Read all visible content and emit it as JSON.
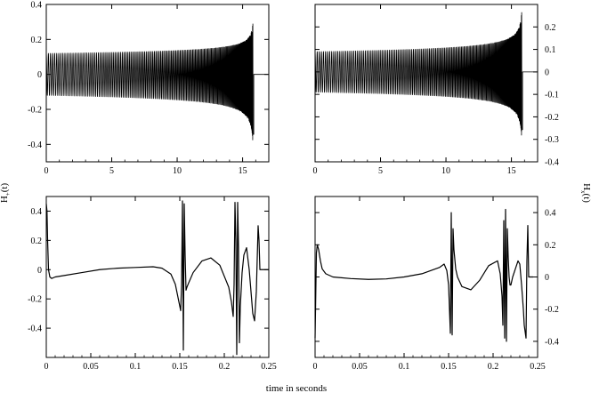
{
  "figure": {
    "xlabel_common": "time in seconds",
    "ylabel_left": "H",
    "ylabel_left_sub": "+",
    "ylabel_left_suffix": "(t)",
    "ylabel_right": "H",
    "ylabel_right_sub": "x",
    "ylabel_right_suffix": "(t)"
  },
  "chart_data": [
    {
      "id": "top-left",
      "type": "line",
      "title": "",
      "xlim": [
        0,
        17
      ],
      "ylim": [
        -0.5,
        0.4
      ],
      "xticks": [
        0,
        5,
        10,
        15
      ],
      "yticks": [
        -0.4,
        -0.2,
        0,
        0.2,
        0.4
      ],
      "ytick_side": "left",
      "series": [
        {
          "kind": "chirp",
          "t_end": 15.85,
          "amp_start": 0.12,
          "amp_peak_pos": 0.3,
          "amp_peak_neg": -0.4,
          "t_after": 16.95,
          "value_after": 0
        }
      ]
    },
    {
      "id": "top-right",
      "type": "line",
      "title": "",
      "xlim": [
        0,
        17
      ],
      "ylim": [
        -0.4,
        0.3
      ],
      "xticks": [
        0,
        5,
        10,
        15
      ],
      "yticks": [
        -0.4,
        -0.3,
        -0.2,
        -0.1,
        0,
        0.1,
        0.2
      ],
      "ytick_side": "right",
      "series": [
        {
          "kind": "chirp",
          "t_end": 15.85,
          "amp_start": 0.09,
          "amp_peak_pos": 0.275,
          "amp_peak_neg": -0.3,
          "t_after": 16.95,
          "value_after": 0
        }
      ]
    },
    {
      "id": "bottom-left",
      "type": "line",
      "title": "",
      "xlim": [
        0,
        0.25
      ],
      "ylim": [
        -0.6,
        0.5
      ],
      "xticks": [
        0,
        0.05,
        0.1,
        0.15,
        0.2,
        0.25
      ],
      "yticks": [
        -0.4,
        -0.2,
        0,
        0.2,
        0.4
      ],
      "ytick_side": "left",
      "series": [
        {
          "kind": "points",
          "x": [
            0,
            0.0008,
            0.0015,
            0.0025,
            0.004,
            0.006,
            0.01,
            0.02,
            0.04,
            0.06,
            0.08,
            0.1,
            0.12,
            0.13,
            0.14,
            0.145,
            0.149,
            0.151,
            0.152,
            0.153,
            0.154,
            0.155,
            0.156,
            0.157,
            0.158,
            0.16,
            0.165,
            0.175,
            0.185,
            0.195,
            0.205,
            0.208,
            0.21,
            0.211,
            0.212,
            0.213,
            0.214,
            0.215,
            0.216,
            0.217,
            0.218,
            0.22,
            0.222,
            0.225,
            0.228,
            0.23,
            0.232,
            0.234,
            0.236,
            0.238,
            0.239,
            0.24,
            0.241,
            0.25
          ],
          "y": [
            0.45,
            0.4,
            0.2,
            0.0,
            -0.05,
            -0.06,
            -0.05,
            -0.04,
            -0.02,
            0.0,
            0.01,
            0.015,
            0.02,
            0.01,
            -0.03,
            -0.1,
            -0.22,
            -0.28,
            -0.1,
            0.47,
            -0.55,
            0.45,
            0.1,
            -0.14,
            -0.12,
            -0.09,
            -0.02,
            0.06,
            0.08,
            0.03,
            -0.12,
            -0.22,
            -0.32,
            -0.1,
            0.46,
            0.2,
            -0.58,
            0.46,
            0.15,
            -0.5,
            -0.25,
            -0.02,
            0.1,
            0.15,
            0.0,
            -0.15,
            -0.3,
            -0.35,
            -0.15,
            0.3,
            0.2,
            0.0,
            0.0,
            0.0
          ]
        }
      ]
    },
    {
      "id": "bottom-right",
      "type": "line",
      "title": "",
      "xlim": [
        0,
        0.25
      ],
      "ylim": [
        -0.5,
        0.5
      ],
      "xticks": [
        0,
        0.05,
        0.1,
        0.15,
        0.2,
        0.25
      ],
      "yticks": [
        -0.4,
        -0.2,
        0,
        0.2,
        0.4
      ],
      "ytick_side": "right",
      "series": [
        {
          "kind": "points",
          "x": [
            0,
            0.0008,
            0.0015,
            0.0025,
            0.004,
            0.006,
            0.008,
            0.012,
            0.02,
            0.04,
            0.06,
            0.08,
            0.1,
            0.12,
            0.13,
            0.14,
            0.145,
            0.148,
            0.15,
            0.151,
            0.152,
            0.153,
            0.154,
            0.155,
            0.156,
            0.158,
            0.16,
            0.165,
            0.175,
            0.185,
            0.195,
            0.205,
            0.208,
            0.21,
            0.211,
            0.212,
            0.213,
            0.214,
            0.215,
            0.216,
            0.217,
            0.218,
            0.219,
            0.22,
            0.222,
            0.225,
            0.228,
            0.23,
            0.232,
            0.234,
            0.235,
            0.237,
            0.238,
            0.239,
            0.24,
            0.245
          ],
          "y": [
            -0.38,
            -0.1,
            0.15,
            0.2,
            0.17,
            0.1,
            0.05,
            0.02,
            0.0,
            -0.01,
            -0.015,
            -0.012,
            0.0,
            0.02,
            0.04,
            0.06,
            0.08,
            0.04,
            -0.05,
            -0.2,
            -0.35,
            0.4,
            -0.36,
            0.3,
            0.17,
            0.05,
            0.0,
            -0.06,
            -0.08,
            -0.02,
            0.07,
            0.1,
            0.02,
            -0.12,
            -0.3,
            0.35,
            -0.38,
            0.42,
            -0.4,
            0.3,
            0.12,
            0.0,
            -0.05,
            -0.05,
            0.0,
            0.05,
            0.1,
            0.08,
            -0.05,
            -0.2,
            -0.3,
            -0.38,
            0.1,
            0.32,
            0.0,
            0.0
          ]
        }
      ]
    }
  ]
}
